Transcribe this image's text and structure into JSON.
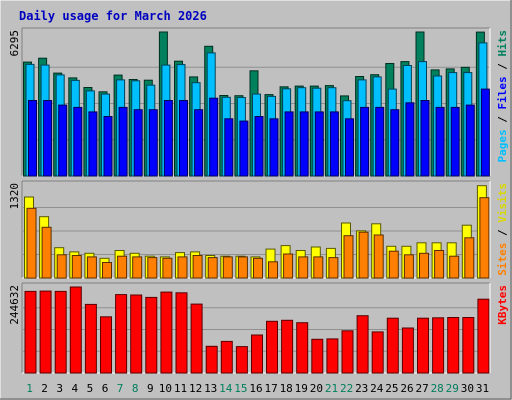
{
  "chart_data": {
    "type": "bar",
    "title": "Daily usage for March 2026",
    "categories": [
      "1",
      "2",
      "3",
      "4",
      "5",
      "6",
      "7",
      "8",
      "9",
      "10",
      "11",
      "12",
      "13",
      "14",
      "15",
      "16",
      "17",
      "18",
      "19",
      "20",
      "21",
      "22",
      "23",
      "24",
      "25",
      "26",
      "27",
      "28",
      "29",
      "30",
      "31"
    ],
    "weekend_days": [
      "1",
      "7",
      "8",
      "14",
      "15",
      "21",
      "22",
      "28",
      "29"
    ],
    "grid": true,
    "panels": [
      {
        "id": "hits-files-pages",
        "ymax_label": "6295",
        "ylim": [
          0,
          6295
        ],
        "legend": {
          "pages": "Pages",
          "files": "Files",
          "hits": "Hits"
        },
        "series": [
          {
            "name": "Hits",
            "color": "#00805c",
            "values": [
              4980,
              5150,
              4500,
              4290,
              3870,
              3680,
              4410,
              4220,
              4190,
              6400,
              5020,
              4330,
              5670,
              3520,
              3510,
              4600,
              3560,
              3900,
              3930,
              3930,
              3950,
              3500,
              4350,
              4430,
              4920,
              5000,
              6400,
              4640,
              4680,
              4750,
              6290
            ]
          },
          {
            "name": "Files",
            "color": "#00bfff",
            "values": [
              4880,
              4850,
              4420,
              4180,
              3720,
              3580,
              4200,
              4160,
              3970,
              4850,
              4870,
              4080,
              5380,
              3440,
              3430,
              3580,
              3480,
              3810,
              3860,
              3840,
              3860,
              3290,
              4200,
              4330,
              3800,
              4830,
              5000,
              4370,
              4520,
              4520,
              5820
            ]
          },
          {
            "name": "Pages",
            "color": "#0000ff",
            "values": [
              3300,
              3300,
              3100,
              3000,
              2800,
              2600,
              3000,
              2900,
              2900,
              3300,
              3300,
              2900,
              3400,
              2500,
              2400,
              2600,
              2500,
              2800,
              2800,
              2800,
              2800,
              2500,
              3000,
              3000,
              2900,
              3200,
              3300,
              3000,
              3000,
              3100,
              3800
            ]
          }
        ]
      },
      {
        "id": "visits-sites",
        "ymax_label": "1320",
        "ylim": [
          0,
          1320
        ],
        "legend": {
          "sites": "Sites",
          "visits": "Visits"
        },
        "series": [
          {
            "name": "Visits",
            "color": "#ffff00",
            "values": [
              1150,
              870,
              430,
              370,
              350,
              280,
              390,
              350,
              310,
              300,
              360,
              370,
              320,
              310,
              310,
              300,
              410,
              460,
              390,
              440,
              420,
              780,
              670,
              770,
              450,
              450,
              500,
              500,
              500,
              750,
              1310
            ]
          },
          {
            "name": "Sites",
            "color": "#ff8000",
            "values": [
              990,
              720,
              330,
              320,
              300,
              220,
              310,
              300,
              290,
              280,
              300,
              320,
              290,
              300,
              300,
              280,
              230,
              340,
              300,
              300,
              290,
              600,
              650,
              610,
              380,
              330,
              350,
              390,
              310,
              570,
              1140
            ]
          }
        ]
      },
      {
        "id": "kbytes",
        "ymax_label": "244632",
        "ylim": [
          0,
          244632
        ],
        "legend": {
          "kbytes": "KBytes"
        },
        "series": [
          {
            "name": "KBytes",
            "color": "#ff0000",
            "values": [
              232000,
              233000,
              232000,
              250000,
              195000,
              160000,
              223000,
              222000,
              215000,
              230000,
              228000,
              196000,
              76000,
              90000,
              75000,
              108000,
              147000,
              150000,
              143000,
              96000,
              97000,
              120000,
              163000,
              117000,
              156000,
              128000,
              156000,
              157000,
              158000,
              158000,
              210000
            ]
          }
        ]
      }
    ]
  }
}
